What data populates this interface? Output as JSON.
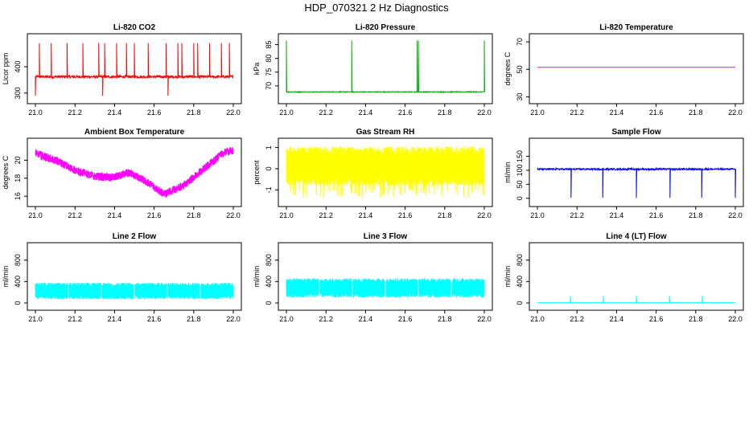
{
  "figure_title": "HDP_070321  2 Hz Diagnostics",
  "chart_data": [
    {
      "type": "line",
      "title": "Li-820 CO2",
      "ylabel": "Licor ppm",
      "color": "#ff0000",
      "xlim": [
        21.0,
        22.0
      ],
      "ylim": [
        275,
        510
      ],
      "yticks": [
        300,
        400
      ],
      "xticks": [
        21.0,
        21.2,
        21.4,
        21.6,
        21.8,
        22.0
      ],
      "baseline": 362,
      "noise": 5,
      "spikes_up": [
        21.02,
        21.08,
        21.16,
        21.24,
        21.32,
        21.35,
        21.41,
        21.46,
        21.5,
        21.57,
        21.66,
        21.72,
        21.74,
        21.8,
        21.82,
        21.88,
        21.94,
        21.98
      ],
      "spike_up_value": 490,
      "spikes_down": [
        21.0,
        21.34,
        21.67
      ],
      "spike_down_value": 290
    },
    {
      "type": "line",
      "title": "Li-820 Pressure",
      "ylabel": "kPa",
      "color": "#00b000",
      "xlim": [
        21.0,
        22.0
      ],
      "ylim": [
        65.0,
        87.5
      ],
      "yticks": [
        70,
        75,
        80,
        85
      ],
      "xticks": [
        21.0,
        21.2,
        21.4,
        21.6,
        21.8,
        22.0
      ],
      "baseline": 67.8,
      "noise": 0.15,
      "spikes_up": [
        21.0,
        21.33,
        21.66,
        21.667,
        22.0
      ],
      "spike_up_value": 86.5
    },
    {
      "type": "line",
      "title": "Li-820 Temperature",
      "ylabel": "degrees C",
      "color": "#ff00ff",
      "xlim": [
        21.0,
        22.0
      ],
      "ylim": [
        28,
        73
      ],
      "yticks": [
        30,
        50,
        70
      ],
      "xticks": [
        21.0,
        21.2,
        21.4,
        21.6,
        21.8,
        22.0
      ],
      "baseline": 51.5,
      "noise": 0
    },
    {
      "type": "line",
      "title": "Ambient Box Temperature",
      "ylabel": "degrees C",
      "color": "#ff00ff",
      "xlim": [
        21.0,
        22.0
      ],
      "ylim": [
        15.3,
        22.0
      ],
      "yticks": [
        16,
        18,
        20
      ],
      "xticks": [
        21.0,
        21.2,
        21.4,
        21.6,
        21.8,
        22.0
      ],
      "trend": [
        [
          21.0,
          20.8
        ],
        [
          21.1,
          20.0
        ],
        [
          21.2,
          18.9
        ],
        [
          21.3,
          18.2
        ],
        [
          21.4,
          18.1
        ],
        [
          21.47,
          18.6
        ],
        [
          21.55,
          17.8
        ],
        [
          21.65,
          16.2
        ],
        [
          21.75,
          17.2
        ],
        [
          21.85,
          19.0
        ],
        [
          21.95,
          20.8
        ],
        [
          22.0,
          21.1
        ]
      ],
      "noise": 0.45
    },
    {
      "type": "line",
      "title": "Gas Stream RH",
      "ylabel": "percent",
      "color": "#ffff00",
      "xlim": [
        21.0,
        22.0
      ],
      "ylim": [
        -1.6,
        1.25
      ],
      "yticks": [
        -1.0,
        0.0,
        1.0
      ],
      "xticks": [
        21.0,
        21.2,
        21.4,
        21.6,
        21.8,
        22.0
      ],
      "band_low": -0.8,
      "band_high": 1.05,
      "band_extreme_low": -1.4
    },
    {
      "type": "line",
      "title": "Sample Flow",
      "ylabel": "ml/min",
      "color": "#0000ff",
      "xlim": [
        21.0,
        22.0
      ],
      "ylim": [
        -15,
        200
      ],
      "yticks": [
        0,
        50,
        100,
        150
      ],
      "xticks": [
        21.0,
        21.2,
        21.4,
        21.6,
        21.8,
        22.0
      ],
      "baseline": 104,
      "noise": 3,
      "spikes_down": [
        21.17,
        21.33,
        21.5,
        21.67,
        21.83,
        22.0
      ],
      "spike_down_value": 2
    },
    {
      "type": "line",
      "title": "Line 2 Flow",
      "ylabel": "ml/min",
      "color": "#00ffff",
      "xlim": [
        21.0,
        22.0
      ],
      "ylim": [
        -60,
        1050
      ],
      "yticks": [
        0,
        400,
        800
      ],
      "xticks": [
        21.0,
        21.2,
        21.4,
        21.6,
        21.8,
        22.0
      ],
      "band_low": 70,
      "band_high": 380,
      "gaps": [
        21.167,
        21.333,
        21.5,
        21.667,
        21.833
      ]
    },
    {
      "type": "line",
      "title": "Line 3 Flow",
      "ylabel": "ml/min",
      "color": "#00ffff",
      "xlim": [
        21.0,
        22.0
      ],
      "ylim": [
        -60,
        1050
      ],
      "yticks": [
        0,
        400,
        800
      ],
      "xticks": [
        21.0,
        21.2,
        21.4,
        21.6,
        21.8,
        22.0
      ],
      "band_low": 100,
      "band_high": 460,
      "gaps": [
        21.167,
        21.333,
        21.5,
        21.667,
        21.833
      ]
    },
    {
      "type": "line",
      "title": "Line 4 (LT) Flow",
      "ylabel": "ml/min",
      "color": "#00ffff",
      "xlim": [
        21.0,
        22.0
      ],
      "ylim": [
        -60,
        1050
      ],
      "yticks": [
        0,
        400,
        800
      ],
      "xticks": [
        21.0,
        21.2,
        21.4,
        21.6,
        21.8,
        22.0
      ],
      "baseline": 5,
      "noise": 2,
      "spikes_up": [
        21.167,
        21.333,
        21.5,
        21.667,
        21.833
      ],
      "spike_up_value": 130
    }
  ]
}
